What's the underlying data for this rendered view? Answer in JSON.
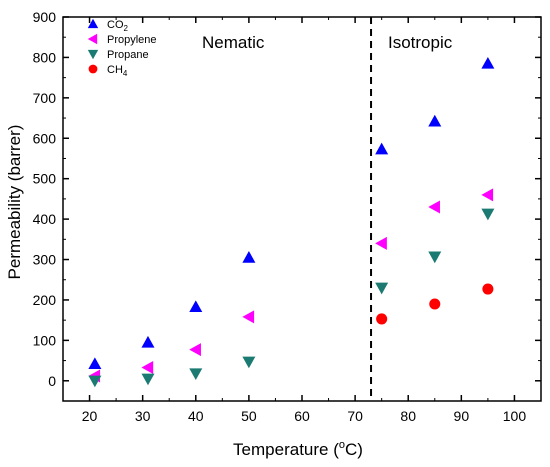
{
  "chart_data": {
    "type": "scatter",
    "xlabel": "Temperature (",
    "xlabel_unit_sup": "o",
    "xlabel_unit_tail": "C)",
    "ylabel": "Permeability (barrer)",
    "xlim": [
      15,
      105
    ],
    "ylim": [
      -50,
      900
    ],
    "xticks": [
      20,
      30,
      40,
      50,
      60,
      70,
      80,
      90,
      100
    ],
    "yticks": [
      0,
      100,
      200,
      300,
      400,
      500,
      600,
      700,
      800,
      900
    ],
    "legend_position": "top-left",
    "region_labels": {
      "left": "Nematic",
      "right": "Isotropic"
    },
    "transition_x": 73,
    "series": [
      {
        "name": "CO2",
        "name_main": "CO",
        "name_sub": "2",
        "marker": "triangle-up",
        "color": "#0000ff",
        "points": [
          [
            21,
            42
          ],
          [
            31,
            95
          ],
          [
            40,
            183
          ],
          [
            50,
            305
          ],
          [
            75,
            573
          ],
          [
            85,
            642
          ],
          [
            95,
            785
          ]
        ]
      },
      {
        "name": "Propylene",
        "name_main": "Propylene",
        "name_sub": "",
        "marker": "triangle-left",
        "color": "#ff00ff",
        "points": [
          [
            21,
            12
          ],
          [
            31,
            33
          ],
          [
            40,
            77
          ],
          [
            50,
            158
          ],
          [
            75,
            340
          ],
          [
            85,
            430
          ],
          [
            95,
            460
          ]
        ]
      },
      {
        "name": "Propane",
        "name_main": "Propane",
        "name_sub": "",
        "marker": "triangle-down",
        "color": "#1b7b73",
        "points": [
          [
            21,
            0
          ],
          [
            31,
            5
          ],
          [
            40,
            18
          ],
          [
            50,
            47
          ],
          [
            75,
            230
          ],
          [
            85,
            307
          ],
          [
            95,
            413
          ]
        ]
      },
      {
        "name": "CH4",
        "name_main": "CH",
        "name_sub": "4",
        "marker": "circle",
        "color": "#ff0000",
        "points": [
          [
            75,
            153
          ],
          [
            85,
            190
          ],
          [
            95,
            227
          ]
        ]
      }
    ]
  }
}
